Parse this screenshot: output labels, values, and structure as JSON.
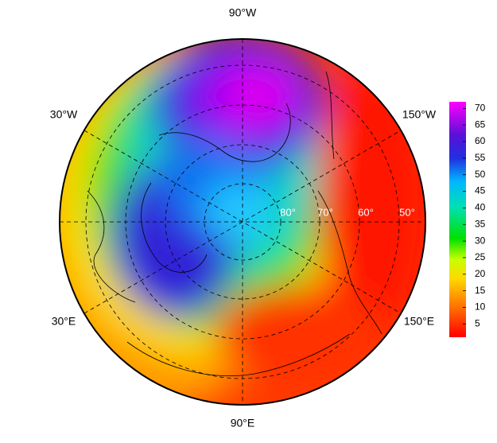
{
  "map": {
    "longitude_labels": [
      "90°W",
      "30°W",
      "150°W",
      "30°E",
      "150°E",
      "90°E"
    ],
    "latitude_labels": [
      "80°",
      "70°",
      "60°",
      "50°"
    ],
    "colorbar": {
      "lim": [
        1,
        72
      ],
      "ticks": [
        5,
        10,
        15,
        20,
        25,
        30,
        35,
        40,
        45,
        50,
        55,
        60,
        65,
        70
      ]
    }
  }
}
